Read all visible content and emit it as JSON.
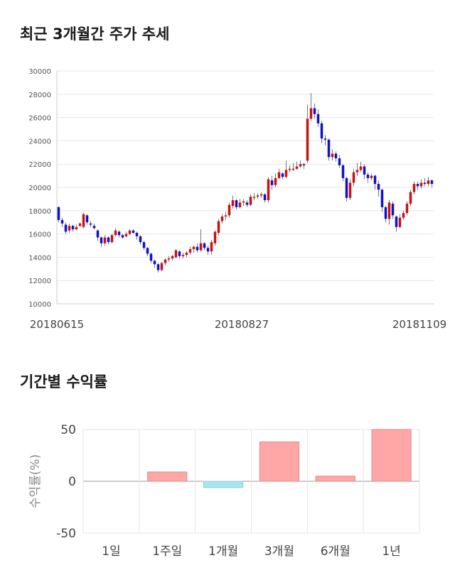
{
  "section1": {
    "title": "최근 3개월간 주가 추세"
  },
  "section2": {
    "title": "기간별 수익률"
  },
  "colors": {
    "up": "#cc1111",
    "down": "#1111cc",
    "bar_pos": "#ffa6a6",
    "bar_neg": "#a6e4ee",
    "grid": "#e6e6e6"
  },
  "chart_data": [
    {
      "type": "candlestick",
      "title": "최근 3개월간 주가 추세",
      "ylim": [
        10000,
        30000
      ],
      "yticks": [
        10000,
        12000,
        14000,
        16000,
        18000,
        20000,
        22000,
        24000,
        26000,
        28000,
        30000
      ],
      "xtick_labels": [
        "20180615",
        "20180827",
        "20181109"
      ],
      "grid": true,
      "candles": [
        [
          18300,
          17200,
          18400,
          17000
        ],
        [
          17200,
          16900,
          17400,
          16600
        ],
        [
          16800,
          16200,
          17000,
          16000
        ],
        [
          16300,
          16700,
          16900,
          16100
        ],
        [
          16700,
          16400,
          16800,
          16200
        ],
        [
          16400,
          16600,
          16800,
          16300
        ],
        [
          16700,
          16900,
          17000,
          16600
        ],
        [
          16600,
          17700,
          17800,
          16500
        ],
        [
          17600,
          17000,
          17700,
          16800
        ],
        [
          16900,
          16800,
          17100,
          16600
        ],
        [
          16700,
          16500,
          16900,
          16400
        ],
        [
          16300,
          15700,
          16400,
          15400
        ],
        [
          15700,
          15200,
          15800,
          14900
        ],
        [
          15200,
          15700,
          15900,
          15000
        ],
        [
          15700,
          15300,
          15800,
          15100
        ],
        [
          15300,
          15900,
          16000,
          15200
        ],
        [
          15900,
          16300,
          16500,
          15800
        ],
        [
          16200,
          15900,
          16300,
          15700
        ],
        [
          15900,
          15700,
          16000,
          15600
        ],
        [
          15800,
          16000,
          16200,
          15700
        ],
        [
          16000,
          16300,
          16400,
          15900
        ],
        [
          16300,
          16100,
          16400,
          16000
        ],
        [
          16100,
          15800,
          16200,
          15500
        ],
        [
          15800,
          15300,
          15900,
          15100
        ],
        [
          15300,
          14800,
          15400,
          14600
        ],
        [
          14800,
          14300,
          14900,
          14100
        ],
        [
          14300,
          13700,
          14400,
          13500
        ],
        [
          13700,
          13400,
          13800,
          13100
        ],
        [
          13400,
          12900,
          13500,
          12700
        ],
        [
          12900,
          13500,
          13600,
          12800
        ],
        [
          13500,
          13800,
          13900,
          13300
        ],
        [
          13800,
          13900,
          14100,
          13600
        ],
        [
          13900,
          14100,
          14200,
          13700
        ],
        [
          14000,
          14600,
          14700,
          13900
        ],
        [
          14500,
          14100,
          14600,
          13900
        ],
        [
          14100,
          14200,
          14400,
          13900
        ],
        [
          14200,
          14400,
          14500,
          14000
        ],
        [
          14400,
          14700,
          14900,
          14200
        ],
        [
          14700,
          14900,
          15000,
          14400
        ],
        [
          14900,
          14600,
          15200,
          14400
        ],
        [
          14600,
          15200,
          16400,
          14500
        ],
        [
          15200,
          14800,
          15300,
          14600
        ],
        [
          14800,
          14500,
          15000,
          14200
        ],
        [
          14500,
          15300,
          15500,
          14200
        ],
        [
          15200,
          16200,
          16300,
          15000
        ],
        [
          16100,
          17100,
          17300,
          15900
        ],
        [
          17100,
          17500,
          17700,
          16900
        ],
        [
          17500,
          17600,
          17900,
          17200
        ],
        [
          17600,
          18500,
          18700,
          17400
        ],
        [
          18400,
          18900,
          19300,
          18200
        ],
        [
          18900,
          18300,
          19000,
          18100
        ],
        [
          18300,
          18700,
          19000,
          18200
        ],
        [
          18700,
          18800,
          19000,
          18400
        ],
        [
          18700,
          18500,
          18900,
          18300
        ],
        [
          18500,
          19200,
          19400,
          18400
        ],
        [
          19200,
          19200,
          19500,
          18900
        ],
        [
          19200,
          19300,
          19500,
          19000
        ],
        [
          19300,
          19400,
          19600,
          19100
        ],
        [
          19400,
          18900,
          19500,
          18700
        ],
        [
          18900,
          20700,
          20900,
          18700
        ],
        [
          20600,
          20200,
          21000,
          19800
        ],
        [
          20200,
          20800,
          21200,
          20000
        ],
        [
          20800,
          21300,
          21600,
          20700
        ],
        [
          21200,
          20900,
          21300,
          20700
        ],
        [
          20900,
          21500,
          22300,
          20800
        ],
        [
          21500,
          21600,
          21900,
          21300
        ],
        [
          21600,
          21600,
          22100,
          21400
        ],
        [
          21600,
          21800,
          22200,
          21500
        ],
        [
          21800,
          22000,
          22300,
          21700
        ],
        [
          22000,
          21900,
          22100,
          21600
        ],
        [
          22300,
          25900,
          27100,
          22100
        ],
        [
          25900,
          26800,
          28100,
          25700
        ],
        [
          26800,
          26300,
          27200,
          25900
        ],
        [
          26300,
          25500,
          26700,
          25200
        ],
        [
          25500,
          24200,
          25700,
          23800
        ],
        [
          24200,
          24100,
          24500,
          23600
        ],
        [
          24100,
          22600,
          24200,
          22300
        ],
        [
          22600,
          22900,
          23300,
          22300
        ],
        [
          22900,
          22500,
          23100,
          22200
        ],
        [
          22500,
          21900,
          22800,
          21700
        ],
        [
          21900,
          20800,
          22000,
          20500
        ],
        [
          20800,
          19100,
          20900,
          18800
        ],
        [
          19100,
          20400,
          20700,
          18900
        ],
        [
          20400,
          21300,
          21600,
          20100
        ],
        [
          21300,
          21500,
          22100,
          21000
        ],
        [
          21500,
          21800,
          22200,
          21300
        ],
        [
          21800,
          21100,
          22000,
          20700
        ],
        [
          21100,
          20800,
          21300,
          20400
        ],
        [
          20800,
          21000,
          21200,
          20600
        ],
        [
          21000,
          20300,
          21100,
          19800
        ],
        [
          20300,
          19800,
          20600,
          19200
        ],
        [
          19800,
          18300,
          19900,
          17900
        ],
        [
          18300,
          17300,
          18400,
          17000
        ],
        [
          17300,
          18700,
          18900,
          16800
        ],
        [
          18600,
          17600,
          18800,
          17300
        ],
        [
          17500,
          16600,
          17600,
          16200
        ],
        [
          16600,
          17400,
          17700,
          16500
        ],
        [
          17400,
          17800,
          18000,
          17200
        ],
        [
          17800,
          18600,
          18800,
          17600
        ],
        [
          18600,
          19600,
          19800,
          18400
        ],
        [
          19600,
          20300,
          20500,
          19400
        ],
        [
          20300,
          20100,
          20500,
          19800
        ],
        [
          20100,
          20400,
          20700,
          19900
        ],
        [
          20400,
          20300,
          20800,
          20100
        ],
        [
          20300,
          20600,
          20900,
          20100
        ],
        [
          20600,
          20300,
          20700,
          20000
        ]
      ]
    },
    {
      "type": "bar",
      "ylabel": "수익률(%)",
      "ylim": [
        -50,
        50
      ],
      "yticks": [
        -50,
        0,
        50
      ],
      "categories": [
        "1일",
        "1주일",
        "1개월",
        "3개월",
        "6개월",
        "1년"
      ],
      "values": [
        0,
        9,
        -6,
        38,
        5,
        50
      ]
    }
  ]
}
